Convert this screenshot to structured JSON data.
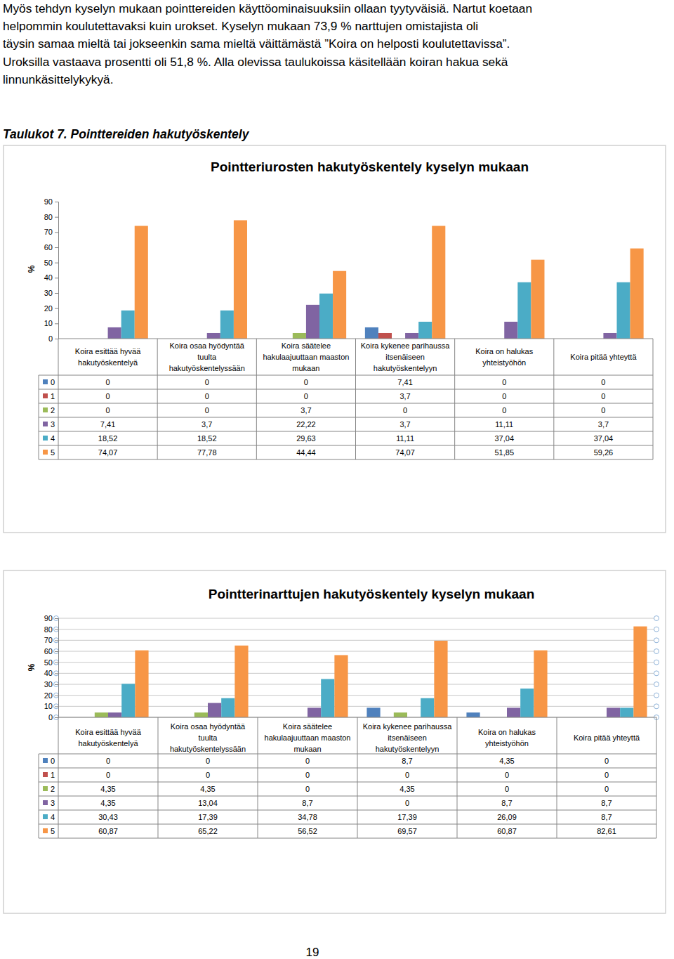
{
  "text": {
    "paragraph": [
      "Myös tehdyn kyselyn mukaan pointtereiden käyttöominaisuuksiin ollaan tyytyväisiä. Nartut koetaan",
      "helpommin koulutettavaksi kuin urokset. Kyselyn mukaan 73,9 % narttujen omistajista oli",
      "täysin samaa mieltä tai jokseenkin sama mieltä väittämästä ”Koira on helposti koulutettavissa”.",
      "Uroksilla vastaava prosentti oli 51,8 %. Alla olevissa taulukoissa käsitellään koiran hakua sekä",
      "linnunkäsittelykykyä."
    ],
    "caption": "Taulukot 7. Pointtereiden hakutyöskentely",
    "page_number": "19"
  },
  "chart_data": [
    {
      "type": "bar",
      "title": "Pointteriurosten hakutyöskentely kyselyn mukaan",
      "ylabel": "%",
      "categories": [
        "Koira esittää hyvää hakutyöskentelyä",
        "Koira osaa hyödyntää tuulta hakutyöskentelyssään",
        "Koira säätelee hakulaajuuttaan maaston mukaan",
        "Koira kykenee parihaussa itsenäiseen hakutyöskentelyyn",
        "Koira on halukas yhteistyöhön",
        "Koira pitää yhteyttä"
      ],
      "series": [
        {
          "name": "0",
          "color": "#4f81bd",
          "values": [
            0,
            0,
            0,
            7.41,
            0,
            0
          ],
          "value_labels": [
            "0",
            "0",
            "0",
            "7,41",
            "0",
            "0"
          ]
        },
        {
          "name": "1",
          "color": "#c0504d",
          "values": [
            0,
            0,
            0,
            3.7,
            0,
            0
          ],
          "value_labels": [
            "0",
            "0",
            "0",
            "3,7",
            "0",
            "0"
          ]
        },
        {
          "name": "2",
          "color": "#9bbb59",
          "values": [
            0,
            0,
            3.7,
            0,
            0,
            0
          ],
          "value_labels": [
            "0",
            "0",
            "3,7",
            "0",
            "0",
            "0"
          ]
        },
        {
          "name": "3",
          "color": "#8064a2",
          "values": [
            7.41,
            3.7,
            22.22,
            3.7,
            11.11,
            3.7
          ],
          "value_labels": [
            "7,41",
            "3,7",
            "22,22",
            "3,7",
            "11,11",
            "3,7"
          ]
        },
        {
          "name": "4",
          "color": "#4bacc6",
          "values": [
            18.52,
            18.52,
            29.63,
            11.11,
            37.04,
            37.04
          ],
          "value_labels": [
            "18,52",
            "18,52",
            "29,63",
            "11,11",
            "37,04",
            "37,04"
          ]
        },
        {
          "name": "5",
          "color": "#f79646",
          "values": [
            74.07,
            77.78,
            44.44,
            74.07,
            51.85,
            59.26
          ],
          "value_labels": [
            "74,07",
            "77,78",
            "44,44",
            "74,07",
            "51,85",
            "59,26"
          ]
        }
      ],
      "ylim": [
        0,
        90
      ],
      "yticks": [
        0,
        10,
        20,
        30,
        40,
        50,
        60,
        70,
        80,
        90
      ],
      "grid": false
    },
    {
      "type": "bar",
      "title": "Pointterinarttujen hakutyöskentely kyselyn mukaan",
      "ylabel": "%",
      "categories": [
        "Koira esittää hyvää hakutyöskentelyä",
        "Koira osaa hyödyntää tuulta hakutyöskentelyssään",
        "Koira säätelee hakulaajuuttaan maaston mukaan",
        "Koira kykenee parihaussa itsenäiseen hakutyöskentelyyn",
        "Koira on halukas yhteistyöhön",
        "Koira pitää yhteyttä"
      ],
      "series": [
        {
          "name": "0",
          "color": "#4f81bd",
          "values": [
            0,
            0,
            0,
            8.7,
            4.35,
            0
          ],
          "value_labels": [
            "0",
            "0",
            "0",
            "8,7",
            "4,35",
            "0"
          ]
        },
        {
          "name": "1",
          "color": "#c0504d",
          "values": [
            0,
            0,
            0,
            0,
            0,
            0
          ],
          "value_labels": [
            "0",
            "0",
            "0",
            "0",
            "0",
            "0"
          ]
        },
        {
          "name": "2",
          "color": "#9bbb59",
          "values": [
            4.35,
            4.35,
            0,
            4.35,
            0,
            0
          ],
          "value_labels": [
            "4,35",
            "4,35",
            "0",
            "4,35",
            "0",
            "0"
          ]
        },
        {
          "name": "3",
          "color": "#8064a2",
          "values": [
            4.35,
            13.04,
            8.7,
            0,
            8.7,
            8.7
          ],
          "value_labels": [
            "4,35",
            "13,04",
            "8,7",
            "0",
            "8,7",
            "8,7"
          ]
        },
        {
          "name": "4",
          "color": "#4bacc6",
          "values": [
            30.43,
            17.39,
            34.78,
            17.39,
            26.09,
            8.7
          ],
          "value_labels": [
            "30,43",
            "17,39",
            "34,78",
            "17,39",
            "26,09",
            "8,7"
          ]
        },
        {
          "name": "5",
          "color": "#f79646",
          "values": [
            60.87,
            65.22,
            56.52,
            69.57,
            60.87,
            82.61
          ],
          "value_labels": [
            "60,87",
            "65,22",
            "56,52",
            "69,57",
            "60,87",
            "82,61"
          ]
        }
      ],
      "ylim": [
        0,
        90
      ],
      "yticks": [
        0,
        10,
        20,
        30,
        40,
        50,
        60,
        70,
        80,
        90
      ],
      "grid": true
    }
  ]
}
